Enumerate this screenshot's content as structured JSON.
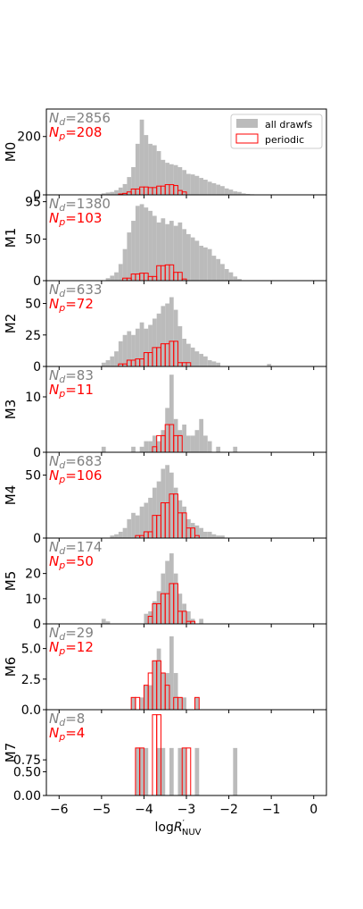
{
  "chart_data": {
    "type": "bar",
    "xlabel": "logR'NUV",
    "x_ticks": [
      "−6",
      "−5",
      "−4",
      "−3",
      "−2",
      "−1",
      "0"
    ],
    "xlim": [
      -6.3,
      0.3
    ],
    "bin_width": 0.1,
    "legend": {
      "position": "top-right",
      "items": [
        {
          "label": "all drawfs",
          "color": "#bbbbbb"
        },
        {
          "label": "periodic",
          "color": "#ff0000"
        }
      ]
    },
    "colors": {
      "all": "#bbbbbb",
      "periodic": "#ff0000",
      "nd_text": "#808080",
      "np_text": "#ff0000"
    },
    "panels": [
      {
        "ylabel": "M0",
        "nd_label": "N_d=2856",
        "np_label": "N_p=208",
        "ylim": [
          0,
          285
        ],
        "yticks": [
          0,
          200
        ],
        "ytick_labels": [
          "0",
          "200"
        ],
        "all": [
          [
            -4.95,
            5
          ],
          [
            -4.85,
            8
          ],
          [
            -4.75,
            10
          ],
          [
            -4.65,
            16
          ],
          [
            -4.55,
            25
          ],
          [
            -4.45,
            37
          ],
          [
            -4.35,
            61
          ],
          [
            -4.25,
            95
          ],
          [
            -4.15,
            175
          ],
          [
            -4.05,
            258
          ],
          [
            -3.95,
            205
          ],
          [
            -3.85,
            175
          ],
          [
            -3.75,
            170
          ],
          [
            -3.65,
            150
          ],
          [
            -3.55,
            120
          ],
          [
            -3.45,
            110
          ],
          [
            -3.35,
            105
          ],
          [
            -3.25,
            102
          ],
          [
            -3.15,
            95
          ],
          [
            -3.05,
            85
          ],
          [
            -2.95,
            72
          ],
          [
            -2.85,
            70
          ],
          [
            -2.75,
            65
          ],
          [
            -2.65,
            58
          ],
          [
            -2.55,
            52
          ],
          [
            -2.45,
            45
          ],
          [
            -2.35,
            40
          ],
          [
            -2.25,
            35
          ],
          [
            -2.15,
            30
          ],
          [
            -2.05,
            22
          ],
          [
            -1.95,
            18
          ],
          [
            -1.85,
            12
          ],
          [
            -1.75,
            10
          ],
          [
            -1.65,
            5
          ],
          [
            -1.55,
            3
          ],
          [
            -1.45,
            2
          ]
        ],
        "periodic": [
          [
            -4.55,
            3
          ],
          [
            -4.45,
            5
          ],
          [
            -4.35,
            10
          ],
          [
            -4.25,
            20
          ],
          [
            -4.15,
            20
          ],
          [
            -4.05,
            27
          ],
          [
            -3.95,
            27
          ],
          [
            -3.85,
            25
          ],
          [
            -3.75,
            25
          ],
          [
            -3.65,
            30
          ],
          [
            -3.55,
            30
          ],
          [
            -3.45,
            35
          ],
          [
            -3.35,
            35
          ],
          [
            -3.25,
            32
          ],
          [
            -3.15,
            15
          ],
          [
            -3.05,
            10
          ]
        ]
      },
      {
        "ylabel": "M1",
        "nd_label": "N_d=1380",
        "np_label": "N_p=103",
        "ylim": [
          0,
          100
        ],
        "yticks": [
          0,
          50,
          95
        ],
        "ytick_labels": [
          "0",
          "50",
          "95"
        ],
        "all": [
          [
            -4.85,
            3
          ],
          [
            -4.75,
            6
          ],
          [
            -4.65,
            10
          ],
          [
            -4.55,
            20
          ],
          [
            -4.45,
            38
          ],
          [
            -4.35,
            58
          ],
          [
            -4.25,
            72
          ],
          [
            -4.15,
            90
          ],
          [
            -4.05,
            92
          ],
          [
            -3.95,
            88
          ],
          [
            -3.85,
            84
          ],
          [
            -3.75,
            78
          ],
          [
            -3.65,
            70
          ],
          [
            -3.55,
            75
          ],
          [
            -3.45,
            68
          ],
          [
            -3.35,
            72
          ],
          [
            -3.25,
            66
          ],
          [
            -3.15,
            70
          ],
          [
            -3.05,
            62
          ],
          [
            -2.95,
            56
          ],
          [
            -2.85,
            52
          ],
          [
            -2.75,
            48
          ],
          [
            -2.65,
            42
          ],
          [
            -2.55,
            40
          ],
          [
            -2.45,
            38
          ],
          [
            -2.35,
            30
          ],
          [
            -2.25,
            26
          ],
          [
            -2.15,
            20
          ],
          [
            -2.05,
            14
          ],
          [
            -1.95,
            10
          ],
          [
            -1.85,
            5
          ],
          [
            -1.75,
            2
          ]
        ],
        "periodic": [
          [
            -4.45,
            3
          ],
          [
            -4.35,
            3
          ],
          [
            -4.25,
            8
          ],
          [
            -4.15,
            8
          ],
          [
            -4.05,
            9
          ],
          [
            -3.95,
            9
          ],
          [
            -3.85,
            5
          ],
          [
            -3.75,
            5
          ],
          [
            -3.65,
            18
          ],
          [
            -3.55,
            18
          ],
          [
            -3.45,
            19
          ],
          [
            -3.35,
            19
          ],
          [
            -3.25,
            10
          ],
          [
            -3.15,
            10
          ],
          [
            -3.05,
            2
          ]
        ]
      },
      {
        "ylabel": "M2",
        "nd_label": "N_d=633",
        "np_label": "N_p=72",
        "ylim": [
          0,
          66
        ],
        "yticks": [
          0,
          25,
          50
        ],
        "ytick_labels": [
          "0",
          "25",
          "50"
        ],
        "all": [
          [
            -4.95,
            3
          ],
          [
            -4.85,
            5
          ],
          [
            -4.75,
            8
          ],
          [
            -4.65,
            12
          ],
          [
            -4.55,
            20
          ],
          [
            -4.45,
            25
          ],
          [
            -4.35,
            28
          ],
          [
            -4.25,
            25
          ],
          [
            -4.15,
            30
          ],
          [
            -4.05,
            35
          ],
          [
            -3.95,
            30
          ],
          [
            -3.85,
            33
          ],
          [
            -3.75,
            38
          ],
          [
            -3.65,
            42
          ],
          [
            -3.55,
            48
          ],
          [
            -3.45,
            50
          ],
          [
            -3.35,
            55
          ],
          [
            -3.25,
            45
          ],
          [
            -3.15,
            32
          ],
          [
            -3.05,
            22
          ],
          [
            -2.95,
            18
          ],
          [
            -2.85,
            15
          ],
          [
            -2.75,
            12
          ],
          [
            -2.65,
            10
          ],
          [
            -2.55,
            8
          ],
          [
            -2.45,
            5
          ],
          [
            -2.35,
            4
          ],
          [
            -2.25,
            3
          ],
          [
            -1.05,
            2
          ]
        ],
        "periodic": [
          [
            -4.55,
            2
          ],
          [
            -4.45,
            2
          ],
          [
            -4.35,
            5
          ],
          [
            -4.25,
            5
          ],
          [
            -4.15,
            6
          ],
          [
            -4.05,
            6
          ],
          [
            -3.95,
            11
          ],
          [
            -3.85,
            11
          ],
          [
            -3.75,
            15
          ],
          [
            -3.65,
            15
          ],
          [
            -3.55,
            18
          ],
          [
            -3.45,
            18
          ],
          [
            -3.35,
            20
          ],
          [
            -3.25,
            20
          ],
          [
            -3.15,
            3
          ],
          [
            -3.05,
            3
          ],
          [
            -2.95,
            3
          ]
        ]
      },
      {
        "ylabel": "M3",
        "nd_label": "N_d=83",
        "np_label": "N_p=11",
        "ylim": [
          0,
          15
        ],
        "yticks": [
          0,
          10
        ],
        "ytick_labels": [
          "0",
          "10"
        ],
        "all": [
          [
            -4.95,
            1
          ],
          [
            -4.25,
            1
          ],
          [
            -4.05,
            1
          ],
          [
            -3.95,
            2
          ],
          [
            -3.85,
            2
          ],
          [
            -3.75,
            3
          ],
          [
            -3.65,
            2
          ],
          [
            -3.55,
            4
          ],
          [
            -3.45,
            8
          ],
          [
            -3.35,
            14
          ],
          [
            -3.25,
            6
          ],
          [
            -3.15,
            4
          ],
          [
            -3.05,
            5
          ],
          [
            -2.95,
            3
          ],
          [
            -2.85,
            3
          ],
          [
            -2.75,
            4
          ],
          [
            -2.65,
            6
          ],
          [
            -2.55,
            3
          ],
          [
            -2.45,
            2
          ],
          [
            -2.25,
            1
          ],
          [
            -1.85,
            1
          ]
        ],
        "periodic": [
          [
            -3.75,
            1
          ],
          [
            -3.65,
            3
          ],
          [
            -3.55,
            3
          ],
          [
            -3.45,
            5
          ],
          [
            -3.35,
            5
          ],
          [
            -3.25,
            3
          ],
          [
            -3.15,
            3
          ]
        ]
      },
      {
        "ylabel": "M4",
        "nd_label": "N_d=683",
        "np_label": "N_p=106",
        "ylim": [
          0,
          66
        ],
        "yticks": [
          0,
          50
        ],
        "ytick_labels": [
          "0",
          "50"
        ],
        "all": [
          [
            -4.75,
            2
          ],
          [
            -4.65,
            3
          ],
          [
            -4.55,
            5
          ],
          [
            -4.45,
            8
          ],
          [
            -4.35,
            15
          ],
          [
            -4.25,
            20
          ],
          [
            -4.15,
            18
          ],
          [
            -4.05,
            25
          ],
          [
            -3.95,
            28
          ],
          [
            -3.85,
            32
          ],
          [
            -3.75,
            40
          ],
          [
            -3.65,
            45
          ],
          [
            -3.55,
            55
          ],
          [
            -3.45,
            58
          ],
          [
            -3.35,
            52
          ],
          [
            -3.25,
            40
          ],
          [
            -3.15,
            30
          ],
          [
            -3.05,
            25
          ],
          [
            -2.95,
            15
          ],
          [
            -2.85,
            12
          ],
          [
            -2.75,
            10
          ],
          [
            -2.65,
            8
          ],
          [
            -2.55,
            5
          ],
          [
            -2.45,
            5
          ],
          [
            -2.35,
            3
          ],
          [
            -2.25,
            2
          ],
          [
            -2.15,
            2
          ]
        ],
        "periodic": [
          [
            -4.15,
            2
          ],
          [
            -4.05,
            2
          ],
          [
            -3.95,
            5
          ],
          [
            -3.85,
            5
          ],
          [
            -3.75,
            18
          ],
          [
            -3.65,
            18
          ],
          [
            -3.55,
            28
          ],
          [
            -3.45,
            28
          ],
          [
            -3.35,
            35
          ],
          [
            -3.25,
            35
          ],
          [
            -3.15,
            20
          ],
          [
            -3.05,
            20
          ],
          [
            -2.95,
            8
          ],
          [
            -2.85,
            8
          ],
          [
            -2.75,
            2
          ]
        ]
      },
      {
        "ylabel": "M5",
        "nd_label": "N_d=174",
        "np_label": "N_p=50",
        "ylim": [
          0,
          33
        ],
        "yticks": [
          0,
          10,
          20
        ],
        "ytick_labels": [
          "0",
          "10",
          "20"
        ],
        "all": [
          [
            -4.95,
            2
          ],
          [
            -4.85,
            1
          ],
          [
            -3.95,
            4
          ],
          [
            -3.85,
            5
          ],
          [
            -3.75,
            9
          ],
          [
            -3.65,
            13
          ],
          [
            -3.55,
            20
          ],
          [
            -3.45,
            25
          ],
          [
            -3.35,
            28
          ],
          [
            -3.25,
            20
          ],
          [
            -3.15,
            12
          ],
          [
            -3.05,
            8
          ],
          [
            -2.95,
            5
          ],
          [
            -2.85,
            2
          ],
          [
            -2.65,
            2
          ]
        ],
        "periodic": [
          [
            -3.85,
            3
          ],
          [
            -3.75,
            8
          ],
          [
            -3.65,
            8
          ],
          [
            -3.55,
            12
          ],
          [
            -3.45,
            12
          ],
          [
            -3.35,
            16
          ],
          [
            -3.25,
            16
          ],
          [
            -3.15,
            5
          ],
          [
            -3.05,
            5
          ],
          [
            -2.95,
            1
          ],
          [
            -2.85,
            1
          ]
        ]
      },
      {
        "ylabel": "M6",
        "nd_label": "N_d=29",
        "np_label": "N_p=12",
        "ylim": [
          0,
          6.8
        ],
        "yticks": [
          0,
          2.5,
          5
        ],
        "ytick_labels": [
          "0.0",
          "2.5",
          "5.0"
        ],
        "all": [
          [
            -4.25,
            1
          ],
          [
            -4.05,
            1
          ],
          [
            -3.95,
            2
          ],
          [
            -3.85,
            2
          ],
          [
            -3.75,
            4
          ],
          [
            -3.65,
            5
          ],
          [
            -3.55,
            3
          ],
          [
            -3.45,
            3
          ],
          [
            -3.35,
            6
          ],
          [
            -3.25,
            3
          ],
          [
            -3.15,
            1
          ],
          [
            -3.05,
            1
          ],
          [
            -2.75,
            1
          ]
        ],
        "periodic": [
          [
            -4.25,
            1
          ],
          [
            -4.15,
            1
          ],
          [
            -3.95,
            2
          ],
          [
            -3.85,
            3
          ],
          [
            -3.75,
            4
          ],
          [
            -3.65,
            4
          ],
          [
            -3.55,
            3
          ],
          [
            -3.45,
            2
          ],
          [
            -3.25,
            1
          ],
          [
            -3.15,
            1
          ],
          [
            -2.75,
            1
          ]
        ]
      },
      {
        "ylabel": "M7",
        "nd_label": "N_d=8",
        "np_label": "N_p=4",
        "ylim": [
          0,
          1.75
        ],
        "yticks": [
          0,
          0.5,
          0.75
        ],
        "ytick_labels": [
          "0.00",
          "0.50",
          "0.75"
        ],
        "all": [
          [
            -4.15,
            1
          ],
          [
            -4.05,
            1
          ],
          [
            -3.95,
            1
          ],
          [
            -3.65,
            1
          ],
          [
            -3.55,
            1
          ],
          [
            -3.35,
            1
          ],
          [
            -3.15,
            1
          ],
          [
            -3.05,
            1
          ],
          [
            -2.75,
            1
          ],
          [
            -1.85,
            1
          ]
        ],
        "periodic": [
          [
            -4.15,
            1
          ],
          [
            -4.05,
            1
          ],
          [
            -3.75,
            1.7
          ],
          [
            -3.65,
            1.7
          ],
          [
            -3.05,
            1
          ],
          [
            -2.95,
            1
          ]
        ]
      }
    ]
  }
}
